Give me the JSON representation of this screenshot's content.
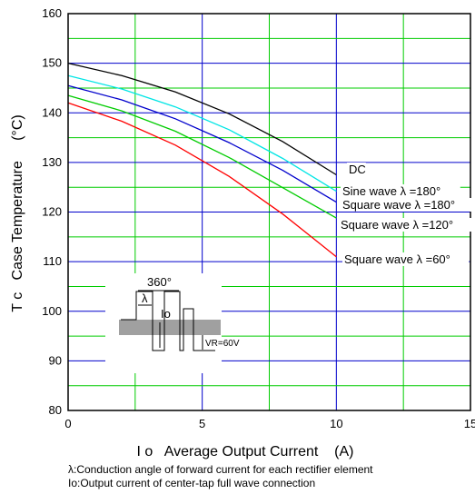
{
  "chart_data": {
    "type": "line",
    "title": "",
    "xlabel": "I o   Average Output Current    (A)",
    "ylabel": "T c   Case Temperature     (°C)",
    "xlim": [
      0,
      15
    ],
    "ylim": [
      80,
      160
    ],
    "xticks": [
      "0",
      "5",
      "10",
      "15"
    ],
    "yticks": [
      "80",
      "90",
      "100",
      "110",
      "120",
      "130",
      "140",
      "150",
      "160"
    ],
    "grid": true,
    "series": [
      {
        "name": "DC",
        "color": "#000000",
        "x": [
          0,
          2,
          4,
          6,
          8,
          10
        ],
        "y": [
          150,
          147.5,
          144.2,
          139.8,
          134.2,
          127.5
        ]
      },
      {
        "name": "Sine wave λ =180°",
        "color": "#00e5e5",
        "x": [
          0,
          2,
          4,
          6,
          8,
          10
        ],
        "y": [
          147.5,
          144.8,
          141.2,
          136.6,
          130.8,
          124.2
        ]
      },
      {
        "name": "Square wave λ =180°",
        "color": "#0000cc",
        "x": [
          0,
          2,
          4,
          6,
          8,
          10
        ],
        "y": [
          145.5,
          142.6,
          138.8,
          134.0,
          128.4,
          122.0
        ]
      },
      {
        "name": "Square wave λ =120°",
        "color": "#00cc00",
        "x": [
          0,
          2,
          4,
          6,
          8,
          10
        ],
        "y": [
          143.5,
          140.4,
          136.3,
          131.0,
          124.9,
          118.8
        ]
      },
      {
        "name": "Square wave λ =60°",
        "color": "#ff0000",
        "x": [
          0,
          2,
          4,
          6,
          8,
          10
        ],
        "y": [
          142,
          138.3,
          133.5,
          127.2,
          119.6,
          111.0
        ]
      }
    ],
    "inset": {
      "angle_label": "360°",
      "lambda_label": "λ",
      "io_label": "Io",
      "vr_label": "VR=60V"
    }
  },
  "notes": {
    "line1": "λ:Conduction angle of forward current for each rectifier element",
    "line2": "Io:Output current of center-tap full wave connection"
  }
}
